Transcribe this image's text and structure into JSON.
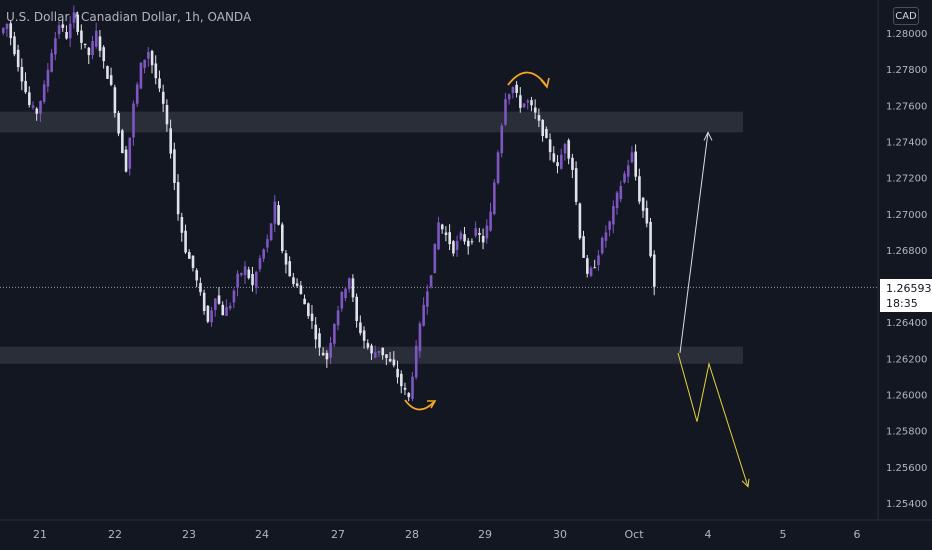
{
  "header": {
    "title": "U.S. Dollar / Canadian Dollar, 1h, OANDA",
    "currency": "CAD"
  },
  "last_price": {
    "value": "1.26593",
    "countdown": "18:35"
  },
  "colors": {
    "background": "#131722",
    "candle_up": "#7e57c2",
    "candle_down": "#e0e3eb",
    "zone": "#2a2e39",
    "arc": "#f5a623",
    "up_path": "#d8dde3",
    "down_path": "#e6d43a",
    "axis_text": "#b2b5be"
  },
  "chart_data": {
    "type": "candlestick",
    "ylim": [
      1.2535,
      1.281
    ],
    "y_ticks": [
      "1.28000",
      "1.27800",
      "1.27600",
      "1.27400",
      "1.27200",
      "1.27000",
      "1.26800",
      "1.26400",
      "1.26200",
      "1.26000",
      "1.25800",
      "1.25600",
      "1.25400"
    ],
    "x_ticks": [
      "21",
      "22",
      "23",
      "24",
      "27",
      "28",
      "29",
      "30",
      "Oct",
      "4",
      "5",
      "6"
    ],
    "price_path": [
      [
        0,
        1.28
      ],
      [
        2,
        1.2805
      ],
      [
        4,
        1.279
      ],
      [
        6,
        1.2775
      ],
      [
        8,
        1.276
      ],
      [
        10,
        1.2756
      ],
      [
        12,
        1.277
      ],
      [
        14,
        1.279
      ],
      [
        16,
        1.2805
      ],
      [
        18,
        1.2798
      ],
      [
        20,
        1.281
      ],
      [
        22,
        1.2795
      ],
      [
        24,
        1.2788
      ],
      [
        26,
        1.28
      ],
      [
        28,
        1.2783
      ],
      [
        30,
        1.277
      ],
      [
        32,
        1.2745
      ],
      [
        34,
        1.2725
      ],
      [
        36,
        1.276
      ],
      [
        38,
        1.2782
      ],
      [
        40,
        1.279
      ],
      [
        42,
        1.2775
      ],
      [
        44,
        1.276
      ],
      [
        46,
        1.2735
      ],
      [
        48,
        1.27
      ],
      [
        50,
        1.268
      ],
      [
        52,
        1.267
      ],
      [
        54,
        1.2655
      ],
      [
        56,
        1.264
      ],
      [
        58,
        1.2655
      ],
      [
        60,
        1.2645
      ],
      [
        62,
        1.265
      ],
      [
        64,
        1.2665
      ],
      [
        66,
        1.267
      ],
      [
        68,
        1.266
      ],
      [
        70,
        1.2675
      ],
      [
        72,
        1.2685
      ],
      [
        74,
        1.2705
      ],
      [
        76,
        1.268
      ],
      [
        78,
        1.2665
      ],
      [
        80,
        1.266
      ],
      [
        82,
        1.265
      ],
      [
        84,
        1.264
      ],
      [
        86,
        1.2625
      ],
      [
        88,
        1.262
      ],
      [
        90,
        1.264
      ],
      [
        92,
        1.2655
      ],
      [
        94,
        1.2665
      ],
      [
        96,
        1.264
      ],
      [
        98,
        1.263
      ],
      [
        100,
        1.2622
      ],
      [
        102,
        1.2625
      ],
      [
        104,
        1.262
      ],
      [
        106,
        1.2615
      ],
      [
        108,
        1.2605
      ],
      [
        110,
        1.2598
      ],
      [
        112,
        1.2625
      ],
      [
        114,
        1.265
      ],
      [
        116,
        1.2668
      ],
      [
        118,
        1.2695
      ],
      [
        120,
        1.2688
      ],
      [
        122,
        1.268
      ],
      [
        124,
        1.2688
      ],
      [
        126,
        1.2683
      ],
      [
        128,
        1.269
      ],
      [
        130,
        1.2685
      ],
      [
        132,
        1.27
      ],
      [
        134,
        1.2735
      ],
      [
        136,
        1.2765
      ],
      [
        138,
        1.277
      ],
      [
        140,
        1.276
      ],
      [
        142,
        1.2762
      ],
      [
        144,
        1.2755
      ],
      [
        146,
        1.2745
      ],
      [
        148,
        1.2735
      ],
      [
        150,
        1.2725
      ],
      [
        152,
        1.274
      ],
      [
        154,
        1.2725
      ],
      [
        156,
        1.2688
      ],
      [
        158,
        1.2665
      ],
      [
        160,
        1.2672
      ],
      [
        162,
        1.2685
      ],
      [
        164,
        1.2695
      ],
      [
        166,
        1.271
      ],
      [
        168,
        1.2722
      ],
      [
        170,
        1.2733
      ],
      [
        172,
        1.2708
      ],
      [
        174,
        1.2695
      ],
      [
        176,
        1.266
      ]
    ],
    "zones": [
      {
        "top": 1.27565,
        "bottom": 1.2745
      },
      {
        "top": 1.26265,
        "bottom": 1.2617
      }
    ],
    "current_price": 1.26593,
    "projection_up": [
      [
        680,
        1.2623
      ],
      [
        708,
        1.2745
      ]
    ],
    "projection_down": [
      [
        678,
        1.2623
      ],
      [
        697,
        1.2585
      ],
      [
        709,
        1.2617
      ],
      [
        748,
        1.2549
      ]
    ]
  }
}
